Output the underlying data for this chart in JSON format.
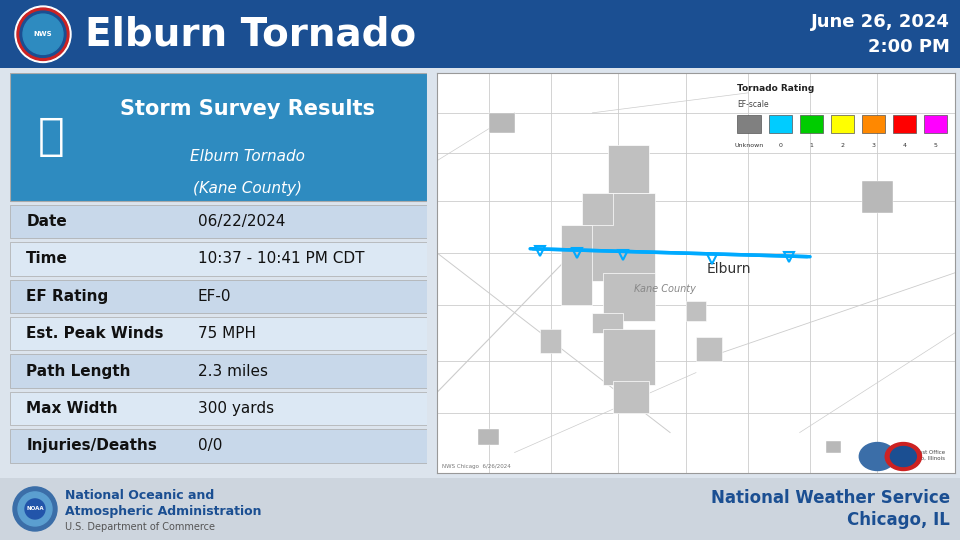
{
  "title": "Elburn Tornado",
  "date_line1": "June 26, 2024",
  "date_line2": "2:00 PM",
  "header_bg": "#1b4f92",
  "body_bg": "#dce4ed",
  "table_header_title": "Storm Survey Results",
  "table_header_subtitle1": "Elburn Tornado",
  "table_header_subtitle2": "(Kane County)",
  "table_header_bg": "#2e8bc0",
  "table_rows": [
    {
      "label": "Date",
      "value": "06/22/2024"
    },
    {
      "label": "Time",
      "value": "10:37 - 10:41 PM CDT"
    },
    {
      "label": "EF Rating",
      "value": "EF-0"
    },
    {
      "label": "Est. Peak Winds",
      "value": "75 MPH"
    },
    {
      "label": "Path Length",
      "value": "2.3 miles"
    },
    {
      "label": "Max Width",
      "value": "300 yards"
    },
    {
      "label": "Injuries/Deaths",
      "value": "0/0"
    }
  ],
  "row_colors": [
    "#c8d8ea",
    "#dce8f4"
  ],
  "footer_bg": "#cdd5de",
  "footer_left_line1": "National Oceanic and",
  "footer_left_line2": "Atmospheric Administration",
  "footer_left_line3": "U.S. Department of Commerce",
  "footer_right_line1": "National Weather Service",
  "footer_right_line2": "Chicago, IL",
  "ef_colors": [
    "#808080",
    "#00ccff",
    "#00cc00",
    "#ffff00",
    "#ff8800",
    "#ff0000",
    "#ff00ff"
  ],
  "ef_labels": [
    "Unknown",
    "0",
    "1",
    "2",
    "3",
    "4",
    "5"
  ],
  "tornado_line_color": "#00aaff",
  "tornado_marker_color": "#00aaff",
  "map_bg": "#ffffff",
  "map_border": "#999999",
  "road_color": "#cccccc",
  "urban_color": "#c0c0c0",
  "city_label": "Elburn",
  "county_label": "Kane County"
}
